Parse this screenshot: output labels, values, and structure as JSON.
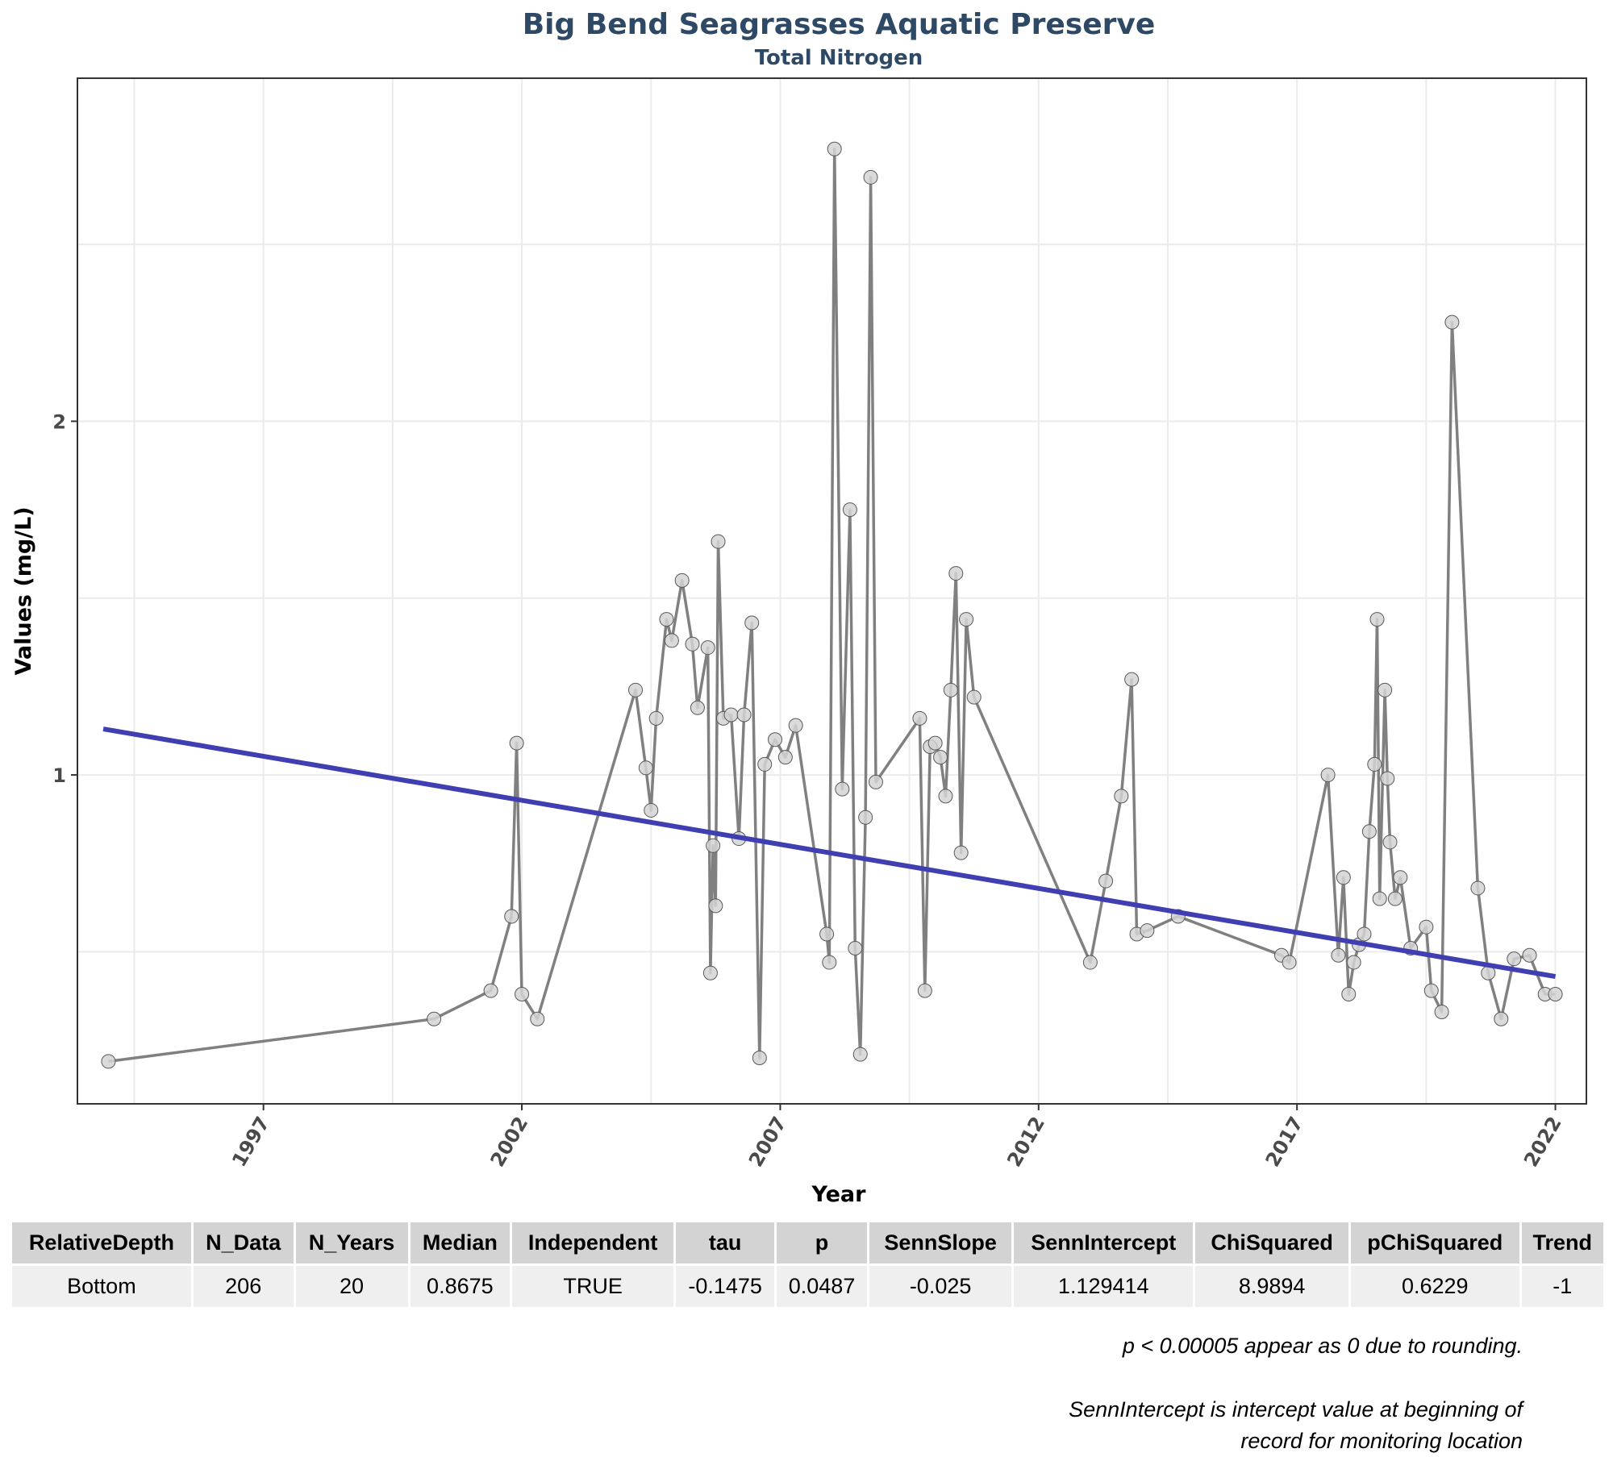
{
  "chart_data": {
    "type": "line",
    "title": "Big Bend Seagrasses Aquatic Preserve",
    "subtitle": "Total Nitrogen",
    "xlabel": "Year",
    "ylabel": "Values (mg/L)",
    "xlim": [
      1993.4,
      2022.6
    ],
    "ylim": [
      0.07,
      2.97
    ],
    "x_ticks": [
      1997,
      2002,
      2007,
      2012,
      2017,
      2022
    ],
    "y_ticks": [
      1,
      2
    ],
    "grid": true,
    "colors": {
      "series": "#808080",
      "point_fill": "#d3d3d3",
      "point_stroke": "#595959",
      "trend": "#3f3fb2",
      "title": "#2e4965"
    },
    "series": [
      {
        "x": [
          1994.0,
          2000.3,
          2001.4,
          2001.8,
          2001.9,
          2002.0,
          2002.3,
          2004.2,
          2004.4,
          2004.5,
          2004.6,
          2004.8,
          2004.9,
          2005.1,
          2005.3,
          2005.4,
          2005.6,
          2005.65,
          2005.7,
          2005.75,
          2005.8,
          2005.9,
          2006.05,
          2006.2,
          2006.3,
          2006.45,
          2006.6,
          2006.7,
          2006.9,
          2007.1,
          2007.3,
          2007.9,
          2007.95,
          2008.05,
          2008.2,
          2008.35,
          2008.45,
          2008.55,
          2008.65,
          2008.75,
          2008.85,
          2009.7,
          2009.8,
          2009.9,
          2010.0,
          2010.1,
          2010.2,
          2010.3,
          2010.4,
          2010.5,
          2010.6,
          2010.75,
          2013.0,
          2013.3,
          2013.6,
          2013.8,
          2013.9,
          2014.1,
          2014.7,
          2016.7,
          2016.85,
          2017.6,
          2017.8,
          2017.9,
          2018.0,
          2018.1,
          2018.2,
          2018.3,
          2018.4,
          2018.5,
          2018.55,
          2018.6,
          2018.7,
          2018.75,
          2018.8,
          2018.9,
          2019.0,
          2019.2,
          2019.5,
          2019.6,
          2019.8,
          2020.0,
          2020.5,
          2020.7,
          2020.95,
          2021.2,
          2021.5,
          2021.8,
          2022.0
        ],
        "y": [
          0.19,
          0.31,
          0.39,
          0.6,
          1.09,
          0.38,
          0.31,
          1.24,
          1.02,
          0.9,
          1.16,
          1.44,
          1.38,
          1.55,
          1.37,
          1.19,
          1.36,
          0.44,
          0.8,
          0.63,
          1.66,
          1.16,
          1.17,
          0.82,
          1.17,
          1.43,
          0.2,
          1.03,
          1.1,
          1.05,
          1.14,
          0.55,
          0.47,
          2.77,
          0.96,
          1.75,
          0.51,
          0.21,
          0.88,
          2.69,
          0.98,
          1.16,
          0.39,
          1.08,
          1.09,
          1.05,
          0.94,
          1.24,
          1.57,
          0.78,
          1.44,
          1.22,
          0.47,
          0.7,
          0.94,
          1.27,
          0.55,
          0.56,
          0.6,
          0.49,
          0.47,
          1.0,
          0.49,
          0.71,
          0.38,
          0.47,
          0.52,
          0.55,
          0.84,
          1.03,
          1.44,
          0.65,
          1.24,
          0.99,
          0.81,
          0.65,
          0.71,
          0.51,
          0.57,
          0.39,
          0.33,
          2.28,
          0.68,
          0.44,
          0.31,
          0.48,
          0.49,
          0.38,
          0.38
        ]
      }
    ],
    "trend_line": {
      "x": [
        1993.9,
        2022.0
      ],
      "y": [
        1.13,
        0.43
      ]
    }
  },
  "stats_table": {
    "headers": [
      "RelativeDepth",
      "N_Data",
      "N_Years",
      "Median",
      "Independent",
      "tau",
      "p",
      "SennSlope",
      "SennIntercept",
      "ChiSquared",
      "pChiSquared",
      "Trend"
    ],
    "rows": [
      [
        "Bottom",
        "206",
        "20",
        "0.8675",
        "TRUE",
        "-0.1475",
        "0.0487",
        "-0.025",
        "1.129414",
        "8.9894",
        "0.6229",
        "-1"
      ]
    ]
  },
  "notes": {
    "rounding": "p < 0.00005 appear as 0 due to rounding.",
    "intercept_line1": "SennIntercept is intercept value at beginning of",
    "intercept_line2": "record for monitoring location"
  }
}
